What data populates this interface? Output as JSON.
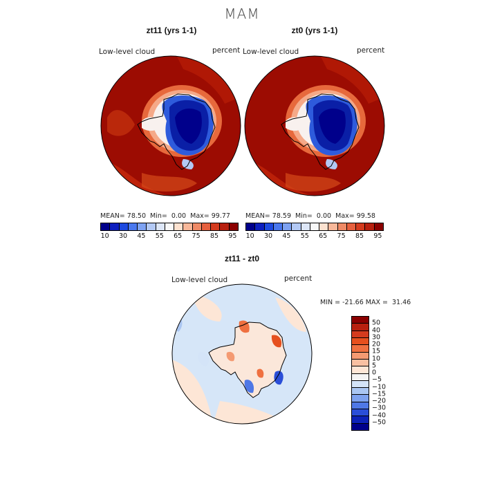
{
  "figure_title": "MAM",
  "panels": [
    {
      "title": "zt11 (yrs 1-1)",
      "variable": "Low-level cloud",
      "units": "percent",
      "stats": {
        "mean_label": "MEAN=",
        "mean": "78.50",
        "min_label": "Min=",
        "min": "0.00",
        "max_label": "Max=",
        "max": "99.77"
      }
    },
    {
      "title": "zt0 (yrs 1-1)",
      "variable": "Low-level cloud",
      "units": "percent",
      "stats": {
        "mean_label": "MEAN=",
        "mean": "78.59",
        "min_label": "Min=",
        "min": "0.00",
        "max_label": "Max=",
        "max": "99.58"
      }
    }
  ],
  "colorbar_abs": {
    "labels": [
      "10",
      "30",
      "45",
      "55",
      "65",
      "75",
      "85",
      "95"
    ],
    "colors": [
      "#00008b",
      "#0d1fbf",
      "#1e4ae0",
      "#4a78ee",
      "#7ea2f2",
      "#b3c9f5",
      "#dde6f7",
      "#f8f8f8",
      "#fde2d0",
      "#f8b89a",
      "#ef8a66",
      "#e6603e",
      "#d43b1e",
      "#b8200f",
      "#8b0000"
    ]
  },
  "diff_panel": {
    "title": "zt11 - zt0",
    "variable": "Low-level cloud",
    "units": "percent",
    "min_label": "MIN =",
    "min": "-21.66",
    "max_label": "MAX =",
    "max": "31.46"
  },
  "colorbar_diff": {
    "labels": [
      "50",
      "40",
      "30",
      "20",
      "15",
      "10",
      "5",
      "0",
      "−5",
      "−10",
      "−15",
      "−20",
      "−30",
      "−40",
      "−50"
    ],
    "colors": [
      "#8b0000",
      "#b8200f",
      "#d43b1e",
      "#e6501e",
      "#ef7040",
      "#f49a72",
      "#f8c0a2",
      "#fde6d6",
      "#f4f4f4",
      "#d4e4f8",
      "#aac6f2",
      "#7ea2ee",
      "#4f78e6",
      "#2a4ed8",
      "#0d22b8",
      "#00008b"
    ]
  }
}
